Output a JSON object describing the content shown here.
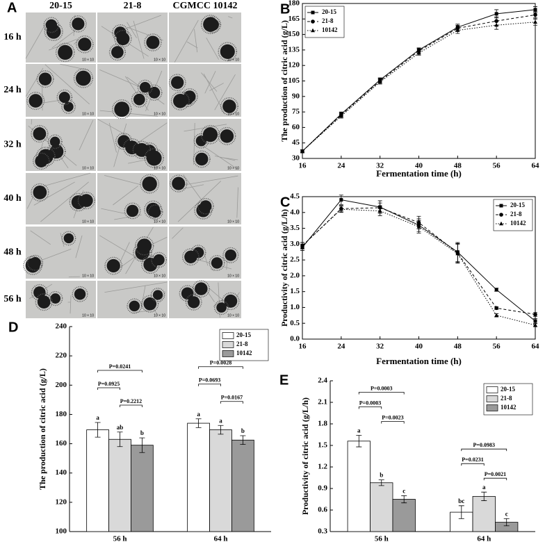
{
  "chart_data": [
    {
      "type": "image-grid",
      "panel_label": "A",
      "columns": [
        "20-15",
        "21-8",
        "CGMCC 10142"
      ],
      "rows": [
        "16 h",
        "24 h",
        "32 h",
        "40 h",
        "48 h",
        "56 h"
      ],
      "stamp": "10 × 10"
    },
    {
      "type": "line",
      "panel_label": "B",
      "x_label": "Fermentation time (h)",
      "y_label": "The production of citric acid (g/L)",
      "x": [
        16,
        24,
        32,
        40,
        48,
        56,
        64
      ],
      "xlim": [
        16,
        64
      ],
      "xticks": [
        16,
        24,
        32,
        40,
        48,
        56,
        64
      ],
      "ylim": [
        30,
        180
      ],
      "yticks": [
        30,
        45,
        60,
        75,
        90,
        105,
        120,
        135,
        150,
        165,
        180
      ],
      "legend": "upper left",
      "series": [
        {
          "name": "20-15",
          "color": "#000000",
          "dash": "solid",
          "marker": "square",
          "values": [
            37,
            73,
            106,
            135,
            157,
            170,
            174
          ],
          "errors": [
            1.5,
            2,
            2,
            2,
            3,
            4,
            3
          ]
        },
        {
          "name": "21-8",
          "color": "#000000",
          "dash": "dashed",
          "marker": "circle",
          "values": [
            37,
            72,
            105,
            134,
            156,
            163,
            169
          ],
          "errors": [
            1.5,
            2,
            2,
            2,
            3,
            4,
            3
          ]
        },
        {
          "name": "10142",
          "color": "#000000",
          "dash": "dotted",
          "marker": "triangle",
          "values": [
            37,
            71,
            104,
            132,
            154,
            159,
            162
          ],
          "errors": [
            1.5,
            2,
            2,
            2,
            3,
            4,
            3
          ]
        }
      ]
    },
    {
      "type": "line",
      "panel_label": "C",
      "x_label": "Fermentation time (h)",
      "y_label": "Productivity of citric acid (g/L/h)",
      "x": [
        16,
        24,
        32,
        40,
        48,
        56,
        64
      ],
      "xlim": [
        16,
        64
      ],
      "xticks": [
        16,
        24,
        32,
        40,
        48,
        56,
        64
      ],
      "ylim": [
        0,
        4.5
      ],
      "yticks": [
        {
          "value": 0,
          "label": "0.0"
        },
        0.5,
        {
          "value": 1,
          "label": "1.0"
        },
        1.5,
        {
          "value": 2,
          "label": "2.0"
        },
        2.5,
        {
          "value": 3,
          "label": "3.0"
        },
        3.5,
        {
          "value": 4,
          "label": "4.0"
        },
        4.5
      ],
      "legend": "upper right",
      "series": [
        {
          "name": "20-15",
          "color": "#000000",
          "dash": "solid",
          "marker": "square",
          "values": [
            2.9,
            4.4,
            4.17,
            3.6,
            2.75,
            1.56,
            0.57
          ],
          "errors": [
            0.1,
            0.15,
            0.2,
            0.2,
            0.3,
            0.05,
            0.08
          ]
        },
        {
          "name": "21-8",
          "color": "#000000",
          "dash": "dashed",
          "marker": "circle",
          "values": [
            2.95,
            4.12,
            4.15,
            3.68,
            2.72,
            0.98,
            0.78
          ],
          "errors": [
            0.1,
            0.1,
            0.15,
            0.2,
            0.3,
            0.04,
            0.06
          ]
        },
        {
          "name": "10142",
          "color": "#000000",
          "dash": "dotted",
          "marker": "triangle",
          "values": [
            2.95,
            4.1,
            4.05,
            3.55,
            2.7,
            0.75,
            0.44
          ],
          "errors": [
            0.1,
            0.1,
            0.15,
            0.2,
            0.3,
            0.05,
            0.05
          ]
        }
      ]
    },
    {
      "type": "bar",
      "panel_label": "D",
      "y_label": "The production of citric acid (g/L)",
      "categories": [
        "56 h",
        "64 h"
      ],
      "ylim": [
        100,
        240
      ],
      "yticks": [
        100,
        120,
        140,
        160,
        180,
        200,
        220,
        240
      ],
      "legend": "upper right",
      "series": [
        {
          "name": "20-15",
          "color": "#ffffff",
          "values": [
            169.5,
            174
          ],
          "errors": [
            5,
            3
          ],
          "letters": [
            "a",
            "a"
          ]
        },
        {
          "name": "21-8",
          "color": "#d9d9d9",
          "values": [
            163,
            169.5
          ],
          "errors": [
            5,
            3
          ],
          "letters": [
            "ab",
            "a"
          ]
        },
        {
          "name": "10142",
          "color": "#9a9a9a",
          "values": [
            159,
            162.5
          ],
          "errors": [
            5,
            3
          ],
          "letters": [
            "b",
            "b"
          ]
        }
      ],
      "comparisons": [
        [
          "P=0.0241",
          "P=0.0925",
          "P=0.2212"
        ],
        [
          "P=0.0028",
          "P=0.0693",
          "P=0.0167"
        ]
      ]
    },
    {
      "type": "bar",
      "panel_label": "E",
      "y_label": "Productivity of citric acid (g/L/h)",
      "categories": [
        "56 h",
        "64 h"
      ],
      "ylim": [
        0.3,
        2.4
      ],
      "yticks": [
        0.3,
        0.6,
        0.9,
        1.2,
        1.5,
        1.8,
        2.1,
        2.4
      ],
      "legend": "upper right",
      "series": [
        {
          "name": "20-15",
          "color": "#ffffff",
          "values": [
            1.56,
            0.57
          ],
          "errors": [
            0.08,
            0.09
          ],
          "letters": [
            "a",
            "bc"
          ]
        },
        {
          "name": "21-8",
          "color": "#d9d9d9",
          "values": [
            0.98,
            0.79
          ],
          "errors": [
            0.04,
            0.06
          ],
          "letters": [
            "b",
            "a"
          ]
        },
        {
          "name": "10142",
          "color": "#9a9a9a",
          "values": [
            0.75,
            0.43
          ],
          "errors": [
            0.05,
            0.05
          ],
          "letters": [
            "c",
            "c"
          ]
        }
      ],
      "comparisons": [
        [
          "P=0.0003",
          "P=0.0003",
          "P=0.0023"
        ],
        [
          "P=0.0983",
          "P=0.0231",
          "P=0.0021"
        ]
      ]
    }
  ]
}
